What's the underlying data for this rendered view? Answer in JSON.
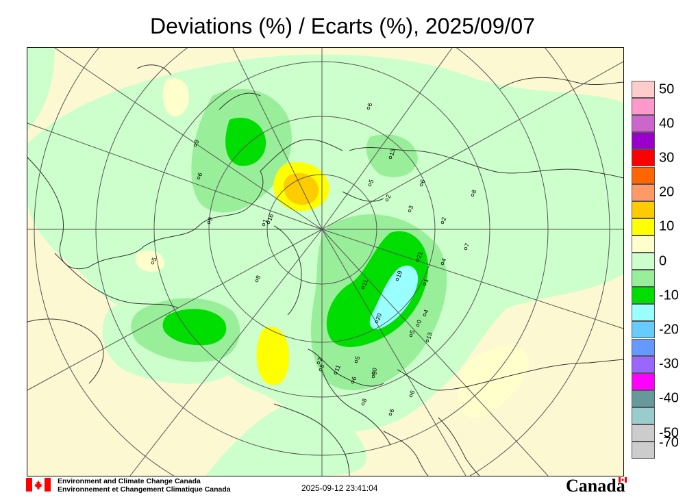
{
  "title": "Deviations (%) / Ecarts (%), 2025/09/07",
  "legend": {
    "items": [
      {
        "label": "50",
        "color": "#ffcccc"
      },
      {
        "label": "",
        "color": "#ff99cc"
      },
      {
        "label": "40",
        "color": "#cc66cc"
      },
      {
        "label": "",
        "color": "#9900cc"
      },
      {
        "label": "30",
        "color": "#ff0000"
      },
      {
        "label": "",
        "color": "#ff6600"
      },
      {
        "label": "20",
        "color": "#ff9966"
      },
      {
        "label": "",
        "color": "#ffcc00"
      },
      {
        "label": "10",
        "color": "#ffff00"
      },
      {
        "label": "",
        "color": "#ffffcc"
      },
      {
        "label": "0",
        "color": "#ccffcc"
      },
      {
        "label": "",
        "color": "#99ee99"
      },
      {
        "label": "-10",
        "color": "#00dd00"
      },
      {
        "label": "",
        "color": "#99ffff"
      },
      {
        "label": "-20",
        "color": "#66ccff"
      },
      {
        "label": "",
        "color": "#6699ff"
      },
      {
        "label": "-30",
        "color": "#9966ff"
      },
      {
        "label": "",
        "color": "#ff00ff"
      },
      {
        "label": "-40",
        "color": "#669999"
      },
      {
        "label": "",
        "color": "#99cccc"
      },
      {
        "label": "-50",
        "color": "#cccccc"
      },
      {
        "label": "-70",
        "color": "#cccccc"
      }
    ]
  },
  "stations": [
    {
      "label": "9"
    },
    {
      "label": "13"
    },
    {
      "label": "6"
    },
    {
      "label": "5"
    },
    {
      "label": "6"
    },
    {
      "label": "2"
    },
    {
      "label": "3"
    },
    {
      "label": "2"
    },
    {
      "label": "16"
    },
    {
      "label": "1"
    },
    {
      "label": "19"
    },
    {
      "label": "21"
    },
    {
      "label": "4"
    },
    {
      "label": "7"
    },
    {
      "label": "11"
    },
    {
      "label": "1"
    },
    {
      "label": "20"
    },
    {
      "label": "0"
    },
    {
      "label": "4"
    },
    {
      "label": "5"
    },
    {
      "label": "13"
    },
    {
      "label": "2"
    },
    {
      "label": "8"
    },
    {
      "label": "11"
    },
    {
      "label": "5"
    },
    {
      "label": "6"
    },
    {
      "label": "0"
    },
    {
      "label": "0"
    },
    {
      "label": "6"
    },
    {
      "label": "8"
    },
    {
      "label": "6"
    },
    {
      "label": "5"
    },
    {
      "label": "8"
    },
    {
      "label": "9"
    },
    {
      "label": "6"
    },
    {
      "label": "8"
    }
  ],
  "footer": {
    "org_en": "Environment and Climate Change Canada",
    "org_fr": "Environnement et Changement Climatique Canada",
    "timestamp": "2025-09-12 23:41:04",
    "wordmark": "Canada"
  },
  "colors": {
    "background": "#fbf8d2",
    "green_light": "#ccffcc",
    "green_mid": "#99ee99",
    "green_dark": "#00dd00",
    "cyan": "#99ffff",
    "yellow": "#ffff00",
    "yellow_light": "#ffffcc",
    "orange": "#ffcc00",
    "flag_red": "#ff0000"
  }
}
